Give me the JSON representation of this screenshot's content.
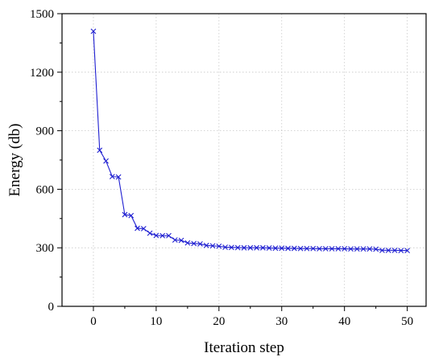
{
  "chart_data": {
    "type": "line",
    "title": "",
    "xlabel": "Iteration step",
    "ylabel": "Energy (db)",
    "xlim": [
      -5,
      53
    ],
    "ylim": [
      0,
      1500
    ],
    "xticks": [
      0,
      10,
      20,
      30,
      40,
      50
    ],
    "yticks": [
      0,
      300,
      600,
      900,
      1200,
      1500
    ],
    "grid": true,
    "legend": "none",
    "marker": "x",
    "series": [
      {
        "color": "#1f1fd1",
        "x": [
          0,
          1,
          2,
          3,
          4,
          5,
          6,
          7,
          8,
          9,
          10,
          11,
          12,
          13,
          14,
          15,
          16,
          17,
          18,
          19,
          20,
          21,
          22,
          23,
          24,
          25,
          26,
          27,
          28,
          29,
          30,
          31,
          32,
          33,
          34,
          35,
          36,
          37,
          38,
          39,
          40,
          41,
          42,
          43,
          44,
          45,
          46,
          47,
          48,
          49,
          50
        ],
        "y": [
          1410,
          800,
          745,
          665,
          663,
          470,
          465,
          400,
          398,
          375,
          363,
          362,
          362,
          340,
          338,
          325,
          322,
          320,
          312,
          310,
          308,
          303,
          302,
          301,
          300,
          300,
          300,
          300,
          299,
          298,
          298,
          297,
          297,
          296,
          296,
          296,
          295,
          295,
          295,
          295,
          295,
          294,
          294,
          294,
          294,
          293,
          287,
          287,
          287,
          286,
          286
        ]
      }
    ]
  }
}
